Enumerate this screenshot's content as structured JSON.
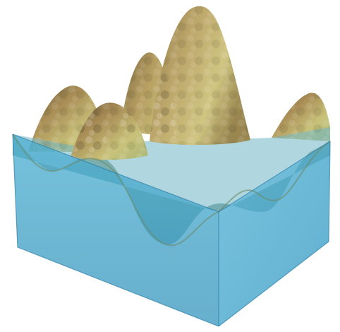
{
  "scene": {
    "subject": "terrain-in-water-block",
    "peak_count": 5,
    "colors": {
      "water_side": "#47aacd",
      "water_front": "#3f9ec4",
      "water_top": "#6fb6c6",
      "water_edge": "#2f7fa8",
      "terrain_light": "#c9c27a",
      "terrain_mid": "#a88c55",
      "terrain_dark": "#6b5a38",
      "terrain_green": "#a9b777",
      "background": "#ffffff"
    }
  }
}
